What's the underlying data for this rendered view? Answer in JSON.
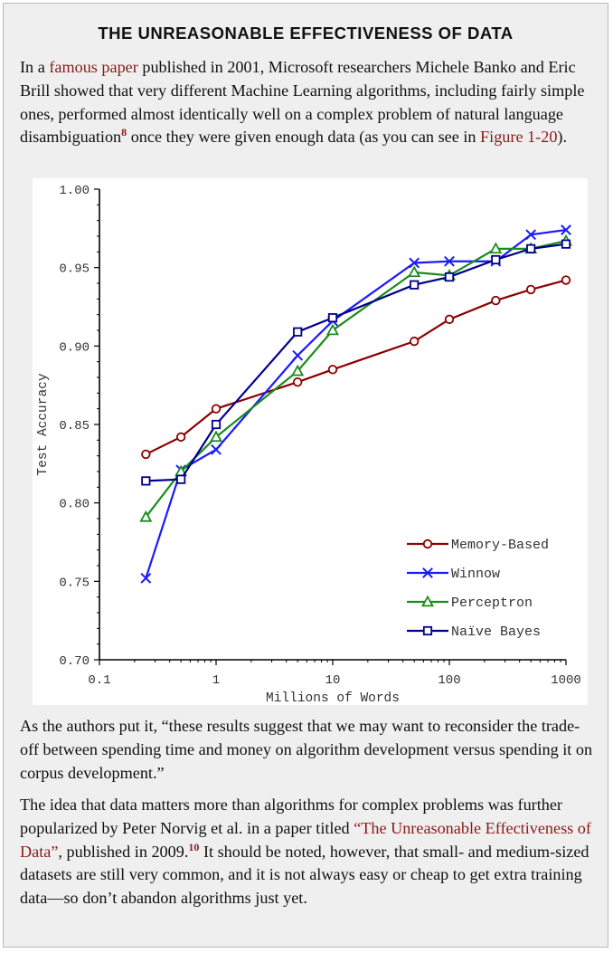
{
  "sidebar": {
    "title": "THE UNREASONABLE EFFECTIVENESS OF DATA",
    "p1": {
      "t1": "In a ",
      "link1": "famous paper",
      "t2": " published in 2001, Microsoft researchers Michele Banko and Eric Brill showed that very different Machine Learning algorithms, including fairly simple ones, performed almost identically well on a complex problem of natural language disambiguation",
      "footnote": "8",
      "t3": " once they were given enough data (as you can see in ",
      "link2": "Figure 1-20",
      "t4": ")."
    },
    "p2": "As the authors put it, “these results suggest that we may want to reconsider the trade-off between spending time and money on algorithm development versus spending it on corpus development.”",
    "p3": {
      "t1": "The idea that data matters more than algorithms for complex problems was further popularized by Peter Norvig et al. in a paper titled ",
      "link": "“The Unreasonable Effectiveness of Data”",
      "t2": ", published in 2009.",
      "footnote": "10",
      "t3": " It should be noted, however, that small- and medium-sized datasets are still very common, and it is not always easy or cheap to get extra training data—so don’t abandon algorithms just yet."
    }
  },
  "chart_data": {
    "type": "line",
    "title": "",
    "xlabel": "Millions of Words",
    "ylabel": "Test Accuracy",
    "x_scale": "log",
    "xlim": [
      0.1,
      1000
    ],
    "ylim": [
      0.7,
      1.0
    ],
    "x_ticks": [
      0.1,
      1,
      10,
      100,
      1000
    ],
    "x_tick_labels": [
      "0.1",
      "1",
      "10",
      "100",
      "1000"
    ],
    "y_ticks": [
      0.7,
      0.75,
      0.8,
      0.85,
      0.9,
      0.95,
      1.0
    ],
    "y_tick_labels": [
      "0.70",
      "0.75",
      "0.80",
      "0.85",
      "0.90",
      "0.95",
      "1.00"
    ],
    "legend_position": "lower-right",
    "grid": false,
    "series": [
      {
        "name": "Memory-Based",
        "color": "#8b0000",
        "marker": "circle",
        "x": [
          0.25,
          0.5,
          1,
          5,
          10,
          50,
          100,
          250,
          500,
          1000
        ],
        "y": [
          0.831,
          0.842,
          0.86,
          0.877,
          0.885,
          0.903,
          0.917,
          0.929,
          0.936,
          0.942
        ]
      },
      {
        "name": "Winnow",
        "color": "#1a1aff",
        "marker": "x",
        "x": [
          0.25,
          0.5,
          1,
          5,
          10,
          50,
          100,
          250,
          500,
          1000
        ],
        "y": [
          0.752,
          0.821,
          0.834,
          0.894,
          0.916,
          0.953,
          0.954,
          0.954,
          0.971,
          0.974
        ]
      },
      {
        "name": "Perceptron",
        "color": "#1a8c1a",
        "marker": "triangle",
        "x": [
          0.25,
          0.5,
          1,
          5,
          10,
          50,
          100,
          250,
          500,
          1000
        ],
        "y": [
          0.791,
          0.82,
          0.842,
          0.884,
          0.91,
          0.947,
          0.945,
          0.962,
          0.962,
          0.967
        ]
      },
      {
        "name": "Naïve Bayes",
        "color": "#00008b",
        "marker": "square",
        "x": [
          0.25,
          0.5,
          1,
          5,
          10,
          50,
          100,
          250,
          500,
          1000
        ],
        "y": [
          0.814,
          0.815,
          0.85,
          0.909,
          0.918,
          0.939,
          0.944,
          0.955,
          0.962,
          0.965
        ]
      }
    ]
  }
}
